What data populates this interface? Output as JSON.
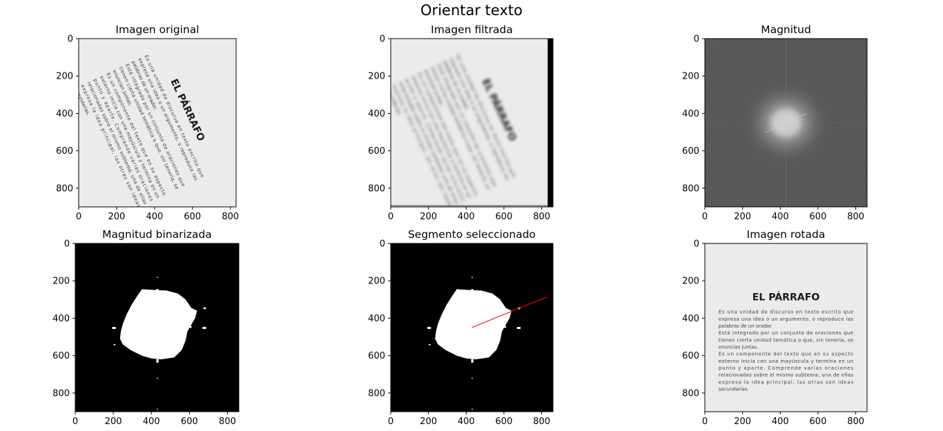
{
  "figure": {
    "title": "Orientar texto",
    "bg": "#ffffff"
  },
  "document": {
    "heading": "EL PÁRRAFO",
    "lines": [
      "Es una unidad de discurso en texto escrito que",
      "expresa una idea o un argumento, o reproduce las",
      "palabras de un orador.",
      "Está integrado por un conjunto de oraciones que",
      "tienen cierta unidad temática o que, sin tenerla, se",
      "enuncian juntas.",
      "Es un componente del texto que en su aspecto",
      "externo inicia con una mayúscula y termina en un",
      "punto y aparte. Comprende varias oraciones",
      "relacionadas sobre el mismo subtema; una de ellas",
      "expresa la idea principal, las otras son ideas",
      "secundarias."
    ],
    "page_color": "#ebebeb",
    "text_color": "#333333"
  },
  "chart_data": [
    {
      "type": "image",
      "id": "original",
      "title": "Imagen original",
      "xticks": [
        0,
        200,
        400,
        600,
        800
      ],
      "yticks": [
        0,
        200,
        400,
        600,
        800
      ],
      "xlim": [
        0,
        830
      ],
      "ylim": [
        900,
        0
      ],
      "content": "document",
      "rotation_deg": 65,
      "blur": false,
      "cmap": "gray"
    },
    {
      "type": "image",
      "id": "filtered",
      "title": "Imagen filtrada",
      "xticks": [
        0,
        200,
        400,
        600,
        800
      ],
      "yticks": [
        0,
        200,
        400,
        600,
        800
      ],
      "xlim": [
        0,
        860
      ],
      "ylim": [
        900,
        0
      ],
      "content": "document",
      "rotation_deg": 65,
      "blur": true,
      "right_black_band_x": [
        832,
        860
      ],
      "cmap": "gray"
    },
    {
      "type": "heatmap",
      "id": "magnitude",
      "title": "Magnitud",
      "xticks": [
        0,
        200,
        400,
        600,
        800
      ],
      "yticks": [
        0,
        200,
        400,
        600,
        800
      ],
      "xlim": [
        0,
        860
      ],
      "ylim": [
        900,
        0
      ],
      "content": "spectrum",
      "center": [
        430,
        450
      ],
      "cmap": "gray"
    },
    {
      "type": "heatmap",
      "id": "binarized",
      "title": "Magnitud binarizada",
      "xticks": [
        0,
        200,
        400,
        600,
        800
      ],
      "yticks": [
        0,
        200,
        400,
        600,
        800
      ],
      "xlim": [
        0,
        860
      ],
      "ylim": [
        900,
        0
      ],
      "content": "binary",
      "center": [
        430,
        450
      ],
      "cmap": "gray"
    },
    {
      "type": "heatmap",
      "id": "segment",
      "title": "Segmento seleccionado",
      "xticks": [
        0,
        200,
        400,
        600,
        800
      ],
      "yticks": [
        0,
        200,
        400,
        600,
        800
      ],
      "xlim": [
        0,
        860
      ],
      "ylim": [
        900,
        0
      ],
      "content": "binary",
      "center": [
        430,
        450
      ],
      "segment": {
        "x": [
          430,
          830
        ],
        "y": [
          450,
          285
        ],
        "color": "#ff0000"
      },
      "cmap": "gray"
    },
    {
      "type": "image",
      "id": "rotated",
      "title": "Imagen rotada",
      "xticks": [
        0,
        200,
        400,
        600,
        800
      ],
      "yticks": [
        0,
        200,
        400,
        600,
        800
      ],
      "xlim": [
        0,
        860
      ],
      "ylim": [
        900,
        0
      ],
      "content": "document",
      "rotation_deg": 0,
      "blur": false,
      "cmap": "gray"
    }
  ]
}
